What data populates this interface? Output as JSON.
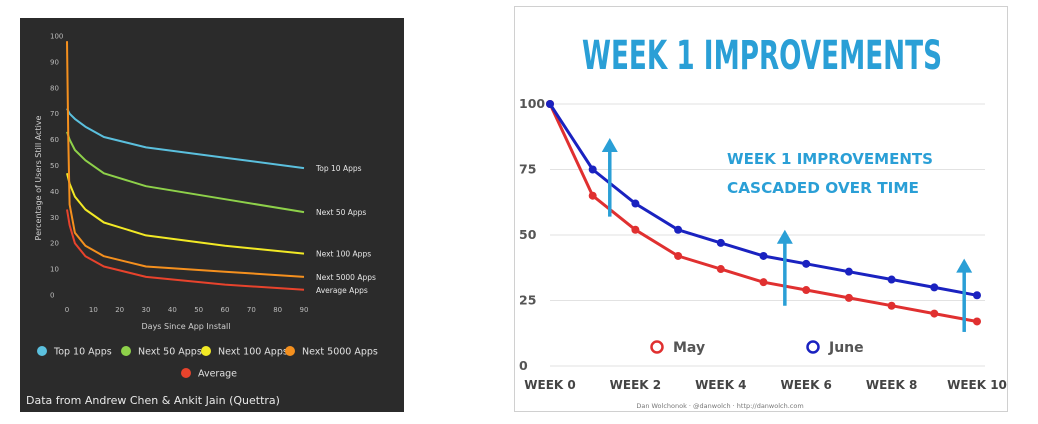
{
  "chart_data": [
    {
      "type": "line",
      "title": "",
      "xlabel": "Days Since App Install",
      "ylabel": "Percentage of Users Still Active",
      "xlim": [
        0,
        90
      ],
      "ylim": [
        0,
        100
      ],
      "x_ticks": [
        0,
        10,
        20,
        30,
        40,
        50,
        60,
        70,
        80,
        90
      ],
      "y_ticks": [
        0,
        10,
        20,
        30,
        40,
        50,
        60,
        70,
        80,
        90,
        100
      ],
      "grid": false,
      "legend_position": "bottom",
      "series": [
        {
          "name": "Top 10 Apps",
          "color": "#5bc0de",
          "end_label": "Top 10 Apps",
          "points": [
            [
              0,
              72
            ],
            [
              1,
              70
            ],
            [
              3,
              68
            ],
            [
              7,
              65
            ],
            [
              14,
              61
            ],
            [
              30,
              57
            ],
            [
              60,
              53
            ],
            [
              90,
              49
            ]
          ]
        },
        {
          "name": "Next 50 Apps",
          "color": "#8ed14a",
          "end_label": "Next 50 Apps",
          "points": [
            [
              0,
              63
            ],
            [
              1,
              60
            ],
            [
              3,
              56
            ],
            [
              7,
              52
            ],
            [
              14,
              47
            ],
            [
              30,
              42
            ],
            [
              60,
              37
            ],
            [
              90,
              32
            ]
          ]
        },
        {
          "name": "Next 100 Apps",
          "color": "#f2e925",
          "end_label": "Next 100 Apps",
          "points": [
            [
              0,
              47
            ],
            [
              1,
              43
            ],
            [
              3,
              38
            ],
            [
              7,
              33
            ],
            [
              14,
              28
            ],
            [
              30,
              23
            ],
            [
              60,
              19
            ],
            [
              90,
              16
            ]
          ]
        },
        {
          "name": "Next 5000 Apps",
          "color": "#f5901e",
          "end_label": "Next 5000 Apps",
          "points": [
            [
              0,
              98
            ],
            [
              0.5,
              60
            ],
            [
              1,
              35
            ],
            [
              3,
              24
            ],
            [
              7,
              19
            ],
            [
              14,
              15
            ],
            [
              30,
              11
            ],
            [
              60,
              9
            ],
            [
              90,
              7
            ]
          ]
        },
        {
          "name": "Average",
          "color": "#e8432c",
          "end_label": "Average Apps",
          "points": [
            [
              0,
              33
            ],
            [
              1,
              27
            ],
            [
              3,
              20
            ],
            [
              7,
              15
            ],
            [
              14,
              11
            ],
            [
              30,
              7
            ],
            [
              60,
              4
            ],
            [
              90,
              2
            ]
          ]
        }
      ],
      "source": "Data from Andrew Chen & Ankit Jain (Quettra)"
    },
    {
      "type": "line",
      "title": "WEEK 1 IMPROVEMENTS",
      "annotation": [
        "WEEK 1 IMPROVEMENTS",
        "CASCADED OVER TIME"
      ],
      "xlabel": "",
      "ylabel": "",
      "x": [
        0,
        1,
        2,
        3,
        4,
        5,
        6,
        7,
        8,
        9,
        10
      ],
      "x_tick_labels": [
        "WEEK 0",
        "WEEK 2",
        "WEEK 4",
        "WEEK 6",
        "WEEK 8",
        "WEEK 10"
      ],
      "ylim": [
        0,
        100
      ],
      "y_ticks": [
        0,
        25,
        50,
        75,
        100
      ],
      "grid": true,
      "legend_position": "bottom",
      "series": [
        {
          "name": "May",
          "color": "#e03030",
          "values": [
            100,
            65,
            52,
            42,
            37,
            32,
            29,
            26,
            23,
            20,
            17
          ]
        },
        {
          "name": "June",
          "color": "#1a22c0",
          "values": [
            100,
            75,
            62,
            52,
            47,
            42,
            39,
            36,
            33,
            30,
            27
          ]
        }
      ],
      "arrows": [
        {
          "x": 1.4,
          "from": 57,
          "to": 87
        },
        {
          "x": 5.5,
          "from": 23,
          "to": 52
        },
        {
          "x": 9.7,
          "from": 13,
          "to": 41
        }
      ],
      "arrow_color": "#2a9fd6",
      "credit": "Dan Wolchonok · @danwolch · http://danwolch.com"
    }
  ]
}
